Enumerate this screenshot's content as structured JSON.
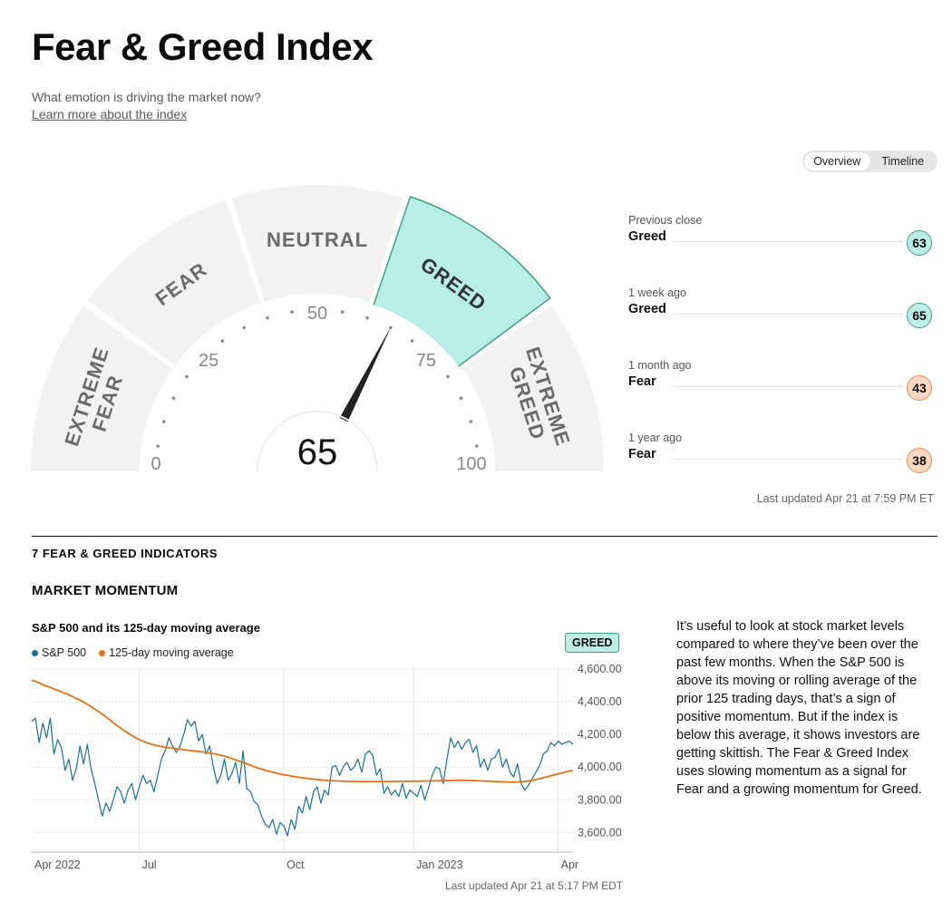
{
  "header": {
    "title": "Fear & Greed Index",
    "subtitle": "What emotion is driving the market now?",
    "learn_more": "Learn more about the index"
  },
  "view_toggle": {
    "options": [
      "Overview",
      "Timeline"
    ],
    "selected": "Overview"
  },
  "gauge": {
    "value": 65,
    "value_text": "65",
    "segments": [
      "EXTREME FEAR",
      "FEAR",
      "NEUTRAL",
      "GREED",
      "EXTREME GREED"
    ],
    "segment_lines": [
      [
        "EXTREME",
        "FEAR"
      ],
      [
        "FEAR"
      ],
      [
        "NEUTRAL"
      ],
      [
        "GREED"
      ],
      [
        "EXTREME",
        "GREED"
      ]
    ],
    "active_segment": "GREED",
    "tick_labels": [
      "0",
      "25",
      "50",
      "75",
      "100"
    ],
    "colors": {
      "segment": "#f2f2f2",
      "active": "#b9eee6",
      "active_border": "#3fa37f",
      "needle": "#222222"
    }
  },
  "history": [
    {
      "label": "Previous close",
      "rating": "Greed",
      "value": "63",
      "tone": "greed"
    },
    {
      "label": "1 week ago",
      "rating": "Greed",
      "value": "65",
      "tone": "greed"
    },
    {
      "label": "1 month ago",
      "rating": "Fear",
      "value": "43",
      "tone": "fear"
    },
    {
      "label": "1 year ago",
      "rating": "Fear",
      "value": "38",
      "tone": "fear"
    }
  ],
  "last_updated_index": "Last updated Apr 21 at 7:59 PM ET",
  "indicators": {
    "section_title": "7 FEAR & GREED INDICATORS",
    "market_momentum": {
      "title": "MARKET MOMENTUM",
      "rating": "GREED",
      "description": "It’s useful to look at stock market levels compared to where they’ve been over the past few months. When the S&P 500 is above its moving or rolling average of the prior 125 trading days, that’s a sign of positive momentum. But if the index is below this average, it shows investors are getting skittish. The Fear & Greed Index uses slowing momentum as a signal for Fear and a growing momentum for Greed.",
      "last_updated": "Last updated Apr 21 at 5:17 PM EDT"
    }
  },
  "chart_data": {
    "type": "line",
    "title": "S&P 500 and its 125-day moving average",
    "xlabel": "",
    "ylabel": "",
    "x_tick_labels": [
      "Apr 2022",
      "Jul",
      "Oct",
      "Jan 2023",
      "Apr"
    ],
    "y_tick_labels": [
      "3,600.00",
      "3,800.00",
      "4,000.00",
      "4,200.00",
      "4,400.00",
      "4,600.00"
    ],
    "ylim": [
      3480,
      4600
    ],
    "grid": true,
    "legend_position": "top-left",
    "series": [
      {
        "name": "S&P 500",
        "color": "#1a6f98",
        "values": [
          4280,
          4300,
          4150,
          4270,
          4180,
          4300,
          4080,
          4170,
          4120,
          3980,
          4050,
          3920,
          3990,
          4130,
          4020,
          4140,
          3990,
          3900,
          3800,
          3700,
          3780,
          3730,
          3800,
          3880,
          3850,
          3780,
          3860,
          3900,
          3800,
          3880,
          3950,
          3900,
          3920,
          3850,
          3950,
          4050,
          4100,
          4180,
          4130,
          4090,
          4130,
          4200,
          4290,
          4250,
          4280,
          4160,
          4200,
          4080,
          4130,
          4000,
          3900,
          3950,
          4050,
          3920,
          3960,
          4030,
          3900,
          4100,
          3870,
          3850,
          3790,
          3770,
          3700,
          3650,
          3630,
          3680,
          3590,
          3660,
          3640,
          3580,
          3680,
          3620,
          3760,
          3720,
          3820,
          3740,
          3850,
          3880,
          3780,
          3860,
          3830,
          4000,
          4010,
          3950,
          4000,
          4030,
          3980,
          4000,
          4050,
          3970,
          4080,
          4100,
          4070,
          3950,
          3990,
          3840,
          3880,
          3830,
          3860,
          3820,
          3900,
          3810,
          3860,
          3840,
          3820,
          3890,
          3800,
          3870,
          3950,
          4000,
          3990,
          3900,
          4050,
          4180,
          4120,
          4160,
          4110,
          4150,
          4170,
          4090,
          4130,
          4000,
          4050,
          3980,
          4050,
          4060,
          4110,
          4000,
          4050,
          3970,
          3940,
          4020,
          3900,
          3860,
          3890,
          3930,
          3970,
          4010,
          4080,
          4100,
          4150,
          4130,
          4160,
          4140,
          4150,
          4160,
          4140
        ]
      },
      {
        "name": "125-day moving average",
        "color": "#e86f12",
        "values": [
          4530,
          4525,
          4515,
          4505,
          4495,
          4488,
          4478,
          4470,
          4460,
          4452,
          4442,
          4432,
          4420,
          4410,
          4398,
          4385,
          4370,
          4355,
          4340,
          4325,
          4308,
          4290,
          4272,
          4255,
          4238,
          4222,
          4208,
          4194,
          4180,
          4168,
          4158,
          4150,
          4142,
          4136,
          4130,
          4126,
          4122,
          4118,
          4115,
          4112,
          4110,
          4107,
          4104,
          4101,
          4099,
          4096,
          4093,
          4090,
          4086,
          4082,
          4078,
          4073,
          4067,
          4060,
          4052,
          4044,
          4036,
          4028,
          4020,
          4012,
          4003,
          3995,
          3988,
          3981,
          3975,
          3969,
          3963,
          3958,
          3954,
          3950,
          3946,
          3942,
          3938,
          3935,
          3932,
          3929,
          3927,
          3924,
          3922,
          3920,
          3918,
          3917,
          3916,
          3915,
          3914,
          3913,
          3913,
          3912,
          3912,
          3912,
          3912,
          3912,
          3912,
          3912,
          3912,
          3912,
          3912,
          3912,
          3913,
          3913,
          3913,
          3913,
          3913,
          3914,
          3914,
          3914,
          3915,
          3915,
          3916,
          3916,
          3917,
          3917,
          3918,
          3918,
          3919,
          3919,
          3919,
          3919,
          3918,
          3918,
          3917,
          3916,
          3915,
          3914,
          3913,
          3912,
          3911,
          3910,
          3909,
          3908,
          3908,
          3909,
          3910,
          3912,
          3915,
          3919,
          3924,
          3929,
          3935,
          3941,
          3947,
          3953,
          3959,
          3965,
          3970,
          3976,
          3980
        ]
      }
    ]
  }
}
